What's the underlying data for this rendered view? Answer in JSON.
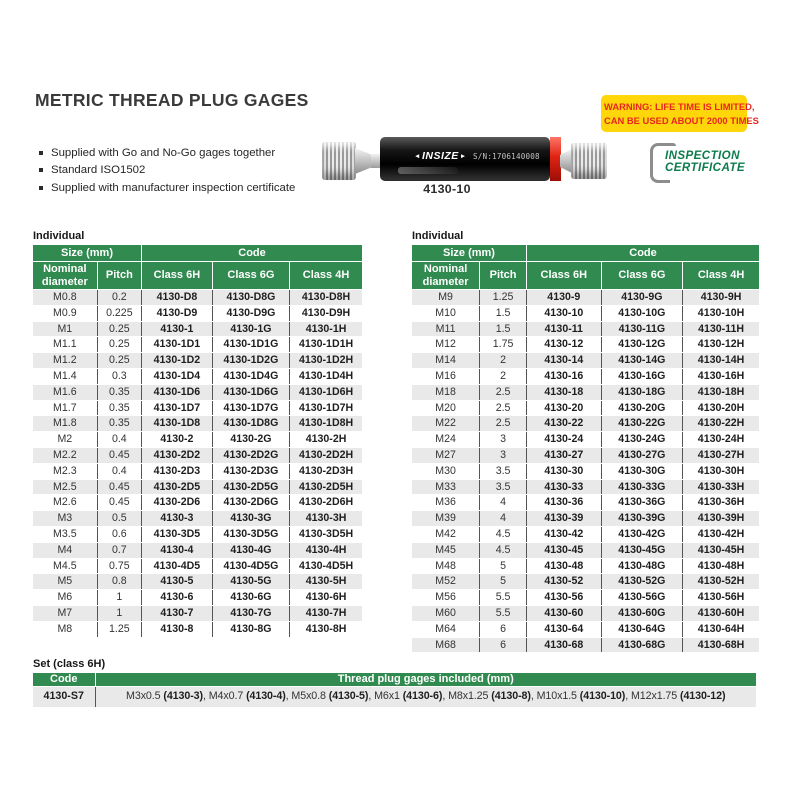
{
  "page": {
    "title": "METRIC THREAD PLUG GAGES",
    "features": [
      "Supplied with Go and No-Go gages together",
      "Standard ISO1502",
      "Supplied with manufacturer inspection certificate"
    ]
  },
  "warning": {
    "line1": "WARNING: LIFE TIME IS LIMITED,",
    "line2": "CAN BE USED ABOUT 2000 TIMES",
    "bg_color": "#ffd60a",
    "text_color": "#e8251f"
  },
  "certificate": {
    "line1": "INSPECTION",
    "line2": "CERTIFICATE",
    "color": "#0c7c4e"
  },
  "product": {
    "brand": "INSIZE",
    "serial": "S/N:1706140008",
    "caption": "4130-10",
    "nogo_band_color": "#e02313"
  },
  "individual_left": {
    "label": "Individual",
    "size_header": "Size (mm)",
    "code_header": "Code",
    "columns": [
      "Nominal diameter",
      "Pitch",
      "Class 6H",
      "Class 6G",
      "Class 4H"
    ],
    "rows": [
      [
        "M0.8",
        "0.2",
        "4130-D8",
        "4130-D8G",
        "4130-D8H"
      ],
      [
        "M0.9",
        "0.225",
        "4130-D9",
        "4130-D9G",
        "4130-D9H"
      ],
      [
        "M1",
        "0.25",
        "4130-1",
        "4130-1G",
        "4130-1H"
      ],
      [
        "M1.1",
        "0.25",
        "4130-1D1",
        "4130-1D1G",
        "4130-1D1H"
      ],
      [
        "M1.2",
        "0.25",
        "4130-1D2",
        "4130-1D2G",
        "4130-1D2H"
      ],
      [
        "M1.4",
        "0.3",
        "4130-1D4",
        "4130-1D4G",
        "4130-1D4H"
      ],
      [
        "M1.6",
        "0.35",
        "4130-1D6",
        "4130-1D6G",
        "4130-1D6H"
      ],
      [
        "M1.7",
        "0.35",
        "4130-1D7",
        "4130-1D7G",
        "4130-1D7H"
      ],
      [
        "M1.8",
        "0.35",
        "4130-1D8",
        "4130-1D8G",
        "4130-1D8H"
      ],
      [
        "M2",
        "0.4",
        "4130-2",
        "4130-2G",
        "4130-2H"
      ],
      [
        "M2.2",
        "0.45",
        "4130-2D2",
        "4130-2D2G",
        "4130-2D2H"
      ],
      [
        "M2.3",
        "0.4",
        "4130-2D3",
        "4130-2D3G",
        "4130-2D3H"
      ],
      [
        "M2.5",
        "0.45",
        "4130-2D5",
        "4130-2D5G",
        "4130-2D5H"
      ],
      [
        "M2.6",
        "0.45",
        "4130-2D6",
        "4130-2D6G",
        "4130-2D6H"
      ],
      [
        "M3",
        "0.5",
        "4130-3",
        "4130-3G",
        "4130-3H"
      ],
      [
        "M3.5",
        "0.6",
        "4130-3D5",
        "4130-3D5G",
        "4130-3D5H"
      ],
      [
        "M4",
        "0.7",
        "4130-4",
        "4130-4G",
        "4130-4H"
      ],
      [
        "M4.5",
        "0.75",
        "4130-4D5",
        "4130-4D5G",
        "4130-4D5H"
      ],
      [
        "M5",
        "0.8",
        "4130-5",
        "4130-5G",
        "4130-5H"
      ],
      [
        "M6",
        "1",
        "4130-6",
        "4130-6G",
        "4130-6H"
      ],
      [
        "M7",
        "1",
        "4130-7",
        "4130-7G",
        "4130-7H"
      ],
      [
        "M8",
        "1.25",
        "4130-8",
        "4130-8G",
        "4130-8H"
      ]
    ]
  },
  "individual_right": {
    "label": "Individual",
    "size_header": "Size (mm)",
    "code_header": "Code",
    "columns": [
      "Nominal diameter",
      "Pitch",
      "Class 6H",
      "Class 6G",
      "Class 4H"
    ],
    "rows": [
      [
        "M9",
        "1.25",
        "4130-9",
        "4130-9G",
        "4130-9H"
      ],
      [
        "M10",
        "1.5",
        "4130-10",
        "4130-10G",
        "4130-10H"
      ],
      [
        "M11",
        "1.5",
        "4130-11",
        "4130-11G",
        "4130-11H"
      ],
      [
        "M12",
        "1.75",
        "4130-12",
        "4130-12G",
        "4130-12H"
      ],
      [
        "M14",
        "2",
        "4130-14",
        "4130-14G",
        "4130-14H"
      ],
      [
        "M16",
        "2",
        "4130-16",
        "4130-16G",
        "4130-16H"
      ],
      [
        "M18",
        "2.5",
        "4130-18",
        "4130-18G",
        "4130-18H"
      ],
      [
        "M20",
        "2.5",
        "4130-20",
        "4130-20G",
        "4130-20H"
      ],
      [
        "M22",
        "2.5",
        "4130-22",
        "4130-22G",
        "4130-22H"
      ],
      [
        "M24",
        "3",
        "4130-24",
        "4130-24G",
        "4130-24H"
      ],
      [
        "M27",
        "3",
        "4130-27",
        "4130-27G",
        "4130-27H"
      ],
      [
        "M30",
        "3.5",
        "4130-30",
        "4130-30G",
        "4130-30H"
      ],
      [
        "M33",
        "3.5",
        "4130-33",
        "4130-33G",
        "4130-33H"
      ],
      [
        "M36",
        "4",
        "4130-36",
        "4130-36G",
        "4130-36H"
      ],
      [
        "M39",
        "4",
        "4130-39",
        "4130-39G",
        "4130-39H"
      ],
      [
        "M42",
        "4.5",
        "4130-42",
        "4130-42G",
        "4130-42H"
      ],
      [
        "M45",
        "4.5",
        "4130-45",
        "4130-45G",
        "4130-45H"
      ],
      [
        "M48",
        "5",
        "4130-48",
        "4130-48G",
        "4130-48H"
      ],
      [
        "M52",
        "5",
        "4130-52",
        "4130-52G",
        "4130-52H"
      ],
      [
        "M56",
        "5.5",
        "4130-56",
        "4130-56G",
        "4130-56H"
      ],
      [
        "M60",
        "5.5",
        "4130-60",
        "4130-60G",
        "4130-60H"
      ],
      [
        "M64",
        "6",
        "4130-64",
        "4130-64G",
        "4130-64H"
      ],
      [
        "M68",
        "6",
        "4130-68",
        "4130-68G",
        "4130-68H"
      ]
    ]
  },
  "set_table": {
    "label": "Set (class 6H)",
    "code_header": "Code",
    "desc_header": "Thread plug gages included (mm)",
    "code": "4130-S7",
    "items": [
      {
        "size": "M3x0.5",
        "code": "4130-3"
      },
      {
        "size": "M4x0.7",
        "code": "4130-4"
      },
      {
        "size": "M5x0.8",
        "code": "4130-5"
      },
      {
        "size": "M6x1",
        "code": "4130-6"
      },
      {
        "size": "M8x1.25",
        "code": "4130-8"
      },
      {
        "size": "M10x1.5",
        "code": "4130-10"
      },
      {
        "size": "M12x1.75",
        "code": "4130-12"
      }
    ]
  },
  "colors": {
    "header_green": "#318a4f",
    "row_alt_gray": "#e9e9e9",
    "certificate_green": "#0c7c4e",
    "warning_yellow": "#ffd60a",
    "warning_red": "#e8251f"
  }
}
